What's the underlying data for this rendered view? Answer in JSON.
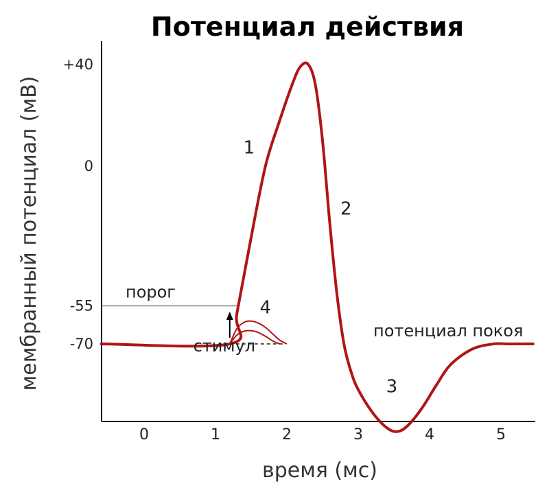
{
  "chart_data": {
    "type": "line",
    "title": "Потенциал действия",
    "xlabel": "время (мс)",
    "ylabel": "мембранный потенциал (мВ)",
    "xlim": [
      -0.6,
      5.45
    ],
    "ylim": [
      -100,
      40
    ],
    "x_ticks": [
      0,
      1,
      2,
      3,
      4,
      5
    ],
    "x_tick_labels": [
      "0",
      "1",
      "2",
      "3",
      "4",
      "5"
    ],
    "y_ticks": [
      40,
      0,
      -55,
      -70
    ],
    "y_tick_labels": [
      "+40",
      "0",
      "-55",
      "-70"
    ],
    "threshold": {
      "label": "порог",
      "value": -55
    },
    "resting": {
      "label": "потенциал покоя",
      "value": -70
    },
    "stimulus": {
      "label": "стимул",
      "x": 1.2
    },
    "phase_labels": [
      {
        "label": "1",
        "x": 1.47,
        "y": 5
      },
      {
        "label": "2",
        "x": 2.83,
        "y": -19
      },
      {
        "label": "3",
        "x": 3.47,
        "y": -89
      },
      {
        "label": "4",
        "x": 1.7,
        "y": -58
      }
    ],
    "series": [
      {
        "values_x": [
          -0.6,
          1.2,
          1.3,
          1.5,
          1.7,
          1.9,
          2.1,
          2.2,
          2.3,
          2.4,
          2.5,
          2.6,
          2.7,
          2.8,
          2.9,
          3.0,
          3.2,
          3.4,
          3.55,
          3.7,
          3.9,
          4.1,
          4.3,
          4.6,
          4.9,
          5.1,
          5.45
        ],
        "values_y": [
          -70,
          -70,
          -58,
          -28,
          0,
          18,
          34,
          39.5,
          40,
          32,
          10,
          -22,
          -50,
          -70,
          -81,
          -88,
          -97,
          -103,
          -104.5,
          -102,
          -95,
          -86,
          -78,
          -72,
          -70,
          -70,
          -70
        ]
      },
      {
        "values_x": [
          1.2,
          1.3,
          1.4,
          1.5,
          1.6,
          1.7,
          1.8,
          1.9,
          2.0
        ],
        "values_y": [
          -70,
          -64,
          -61.5,
          -61,
          -61.8,
          -63.5,
          -66,
          -68.5,
          -70
        ]
      },
      {
        "values_x": [
          1.2,
          1.3,
          1.4,
          1.5,
          1.6,
          1.7,
          1.8,
          1.9
        ],
        "values_y": [
          -70,
          -66.5,
          -65,
          -64.8,
          -65.5,
          -67,
          -68.8,
          -70
        ]
      }
    ],
    "grid": false,
    "colors": {
      "curve": "#b01515",
      "axis": "#000000",
      "threshold": "#888888",
      "resting": "#555555"
    }
  }
}
